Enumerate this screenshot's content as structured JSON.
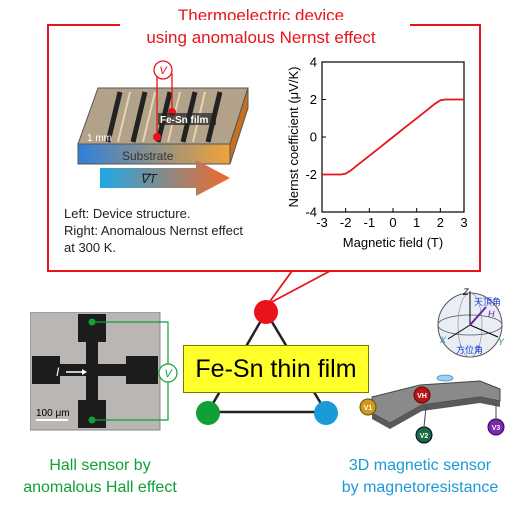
{
  "title": {
    "line1": "Thermoelectric device",
    "line2": "using anomalous Nernst effect"
  },
  "device": {
    "film_label": "Fe-Sn film",
    "scale_label": "1 mm",
    "substrate_label": "Substrate",
    "gradient_label": "∇T",
    "voltmeter_symbol": "V"
  },
  "caption": {
    "line1": "Left: Device structure.",
    "line2": "Right: Anomalous Nernst effect",
    "line3": "at 300 K."
  },
  "chart_data": {
    "type": "line",
    "x": [
      -3,
      -2.6,
      -2.2,
      -2.0,
      -1.8,
      -1.5,
      -1.0,
      -0.5,
      0,
      0.5,
      1.0,
      1.5,
      1.8,
      2.0,
      2.2,
      2.6,
      3.0
    ],
    "y": [
      -2.0,
      -2.0,
      -2.0,
      -1.95,
      -1.8,
      -1.5,
      -1.0,
      -0.5,
      0,
      0.5,
      1.0,
      1.5,
      1.8,
      1.95,
      2.0,
      2.0,
      2.0
    ],
    "xlabel": "Magnetic field (T)",
    "ylabel": "Nernst coefficient (μV/K)",
    "xlim": [
      -3,
      3
    ],
    "ylim": [
      -4,
      4
    ],
    "xticks": [
      "-3",
      "-2",
      "-1",
      "0",
      "1",
      "2",
      "3"
    ],
    "yticks": [
      "4",
      "2",
      "0",
      "-2",
      "-4"
    ],
    "color": "#e8141a"
  },
  "center_label": "Fe-Sn thin film",
  "hall": {
    "current_label": "I",
    "scale_label": "100 μm",
    "voltmeter_symbol": "V",
    "caption_line1": "Hall sensor by",
    "caption_line2": "anomalous Hall effect"
  },
  "sensor3d": {
    "axis_z": "Z",
    "axis_x": "X",
    "axis_y": "Y",
    "zenith_label": "天頂角",
    "azimuth_label": "方位角",
    "field_label": "H",
    "v1": "V1",
    "v2": "V2",
    "v3": "V3",
    "vh": "VH",
    "caption_line1": "3D magnetic sensor",
    "caption_line2": "by magnetoresistance"
  },
  "colors": {
    "red": "#e8141a",
    "green": "#10a036",
    "blue": "#1a9ad6",
    "yellow": "#ffff2a"
  }
}
